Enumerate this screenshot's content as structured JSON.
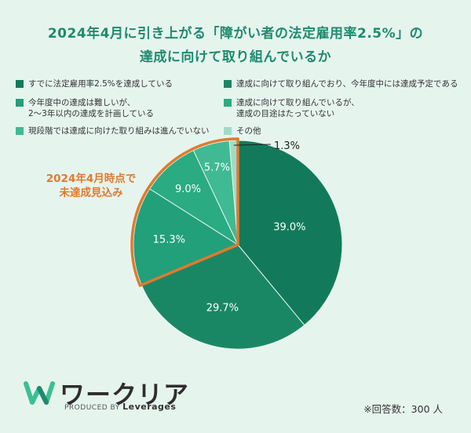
{
  "title_lines": [
    "2024年4月に引き上がる「障がい者の法定雇用率2.5%」の",
    "達成に向けて取り組んでいるか"
  ],
  "chart_data": {
    "type": "pie",
    "title": "2024年4月に引き上がる「障がい者の法定雇用率2.5%」の達成に向けて取り組んでいるか",
    "slices": [
      {
        "label": "すでに法定雇用率2.5%を達成している",
        "value": 39.0,
        "color": "#127a5a"
      },
      {
        "label": "達成に向けて取り組んでおり、今年度中には達成予定である",
        "value": 29.7,
        "color": "#1a8764"
      },
      {
        "label": "今年度中の達成は難しいが、\n2〜3年以内の達成を計画している",
        "value": 15.3,
        "color": "#22a079"
      },
      {
        "label": "達成に向けて取り組んでいるが、\n達成の目途はたっていない",
        "value": 9.0,
        "color": "#2aab82"
      },
      {
        "label": "現段階では達成に向けた取り組みは進んでいない",
        "value": 5.7,
        "color": "#3fba92"
      },
      {
        "label": "その他",
        "value": 1.3,
        "color": "#9fdcc6"
      }
    ],
    "value_labels": [
      "39.0%",
      "29.7%",
      "15.3%",
      "9.0%",
      "5.7%",
      "1.3%"
    ],
    "legend_position": "top",
    "highlight_label_lines": [
      "2024年4月時点で",
      "未達成見込み"
    ],
    "highlight_color": "#e07a2e"
  },
  "logo": {
    "text": "ワークリア",
    "produced_by": "PRODUCED BY",
    "brand": "Leverages"
  },
  "note": "※回答数：300 人"
}
